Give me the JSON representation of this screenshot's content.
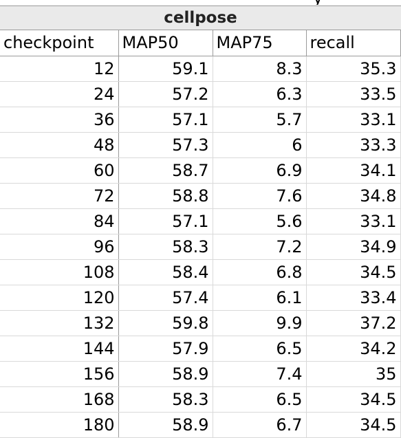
{
  "top_fragment": "y_",
  "sheet": {
    "title": "cellpose",
    "columns": [
      "checkpoint",
      "MAP50",
      "MAP75",
      "recall"
    ],
    "rows": [
      [
        "12",
        "59.1",
        "8.3",
        "35.3"
      ],
      [
        "24",
        "57.2",
        "6.3",
        "33.5"
      ],
      [
        "36",
        "57.1",
        "5.7",
        "33.1"
      ],
      [
        "48",
        "57.3",
        "6",
        "33.3"
      ],
      [
        "60",
        "58.7",
        "6.9",
        "34.1"
      ],
      [
        "72",
        "58.8",
        "7.6",
        "34.8"
      ],
      [
        "84",
        "57.1",
        "5.6",
        "33.1"
      ],
      [
        "96",
        "58.3",
        "7.2",
        "34.9"
      ],
      [
        "108",
        "58.4",
        "6.8",
        "34.5"
      ],
      [
        "120",
        "57.4",
        "6.1",
        "33.4"
      ],
      [
        "132",
        "59.8",
        "9.9",
        "37.2"
      ],
      [
        "144",
        "57.9",
        "6.5",
        "34.2"
      ],
      [
        "156",
        "58.9",
        "7.4",
        "35"
      ],
      [
        "168",
        "58.3",
        "6.5",
        "34.5"
      ],
      [
        "180",
        "58.9",
        "6.7",
        "34.5"
      ]
    ]
  }
}
